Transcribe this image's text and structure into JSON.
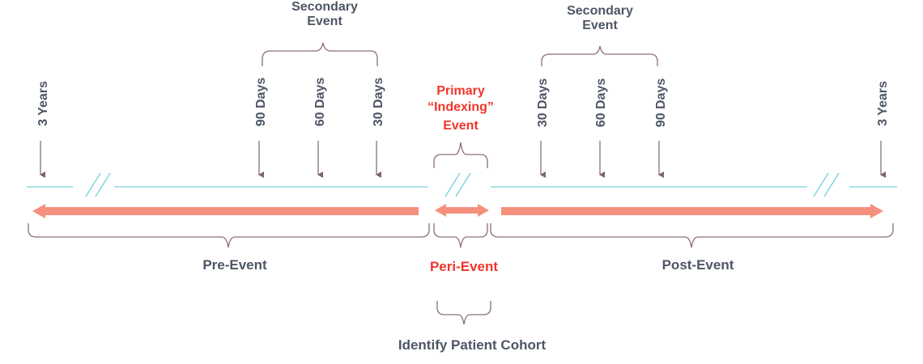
{
  "colors": {
    "text": "#4d5665",
    "accent_red": "#f0352c",
    "arrow_salmon": "#f5907c",
    "timeline_cyan": "#79d4dc",
    "brace": "#8c6f7b",
    "tick": "#7e6470"
  },
  "secondary_left": {
    "line1": "Secondary",
    "line2": "Event"
  },
  "secondary_right": {
    "line1": "Secondary",
    "line2": "Event"
  },
  "primary": {
    "line1": "Primary",
    "line2": "“Indexing”",
    "line3": "Event"
  },
  "ticks": {
    "left_3y": "3 Years",
    "left_90": "90 Days",
    "left_60": "60 Days",
    "left_30": "30 Days",
    "right_30": "30 Days",
    "right_60": "60 Days",
    "right_90": "90 Days",
    "right_3y": "3 Years"
  },
  "periods": {
    "pre": "Pre-Event",
    "peri": "Peri-Event",
    "post": "Post-Event"
  },
  "cohort_label": "Identify Patient Cohort"
}
